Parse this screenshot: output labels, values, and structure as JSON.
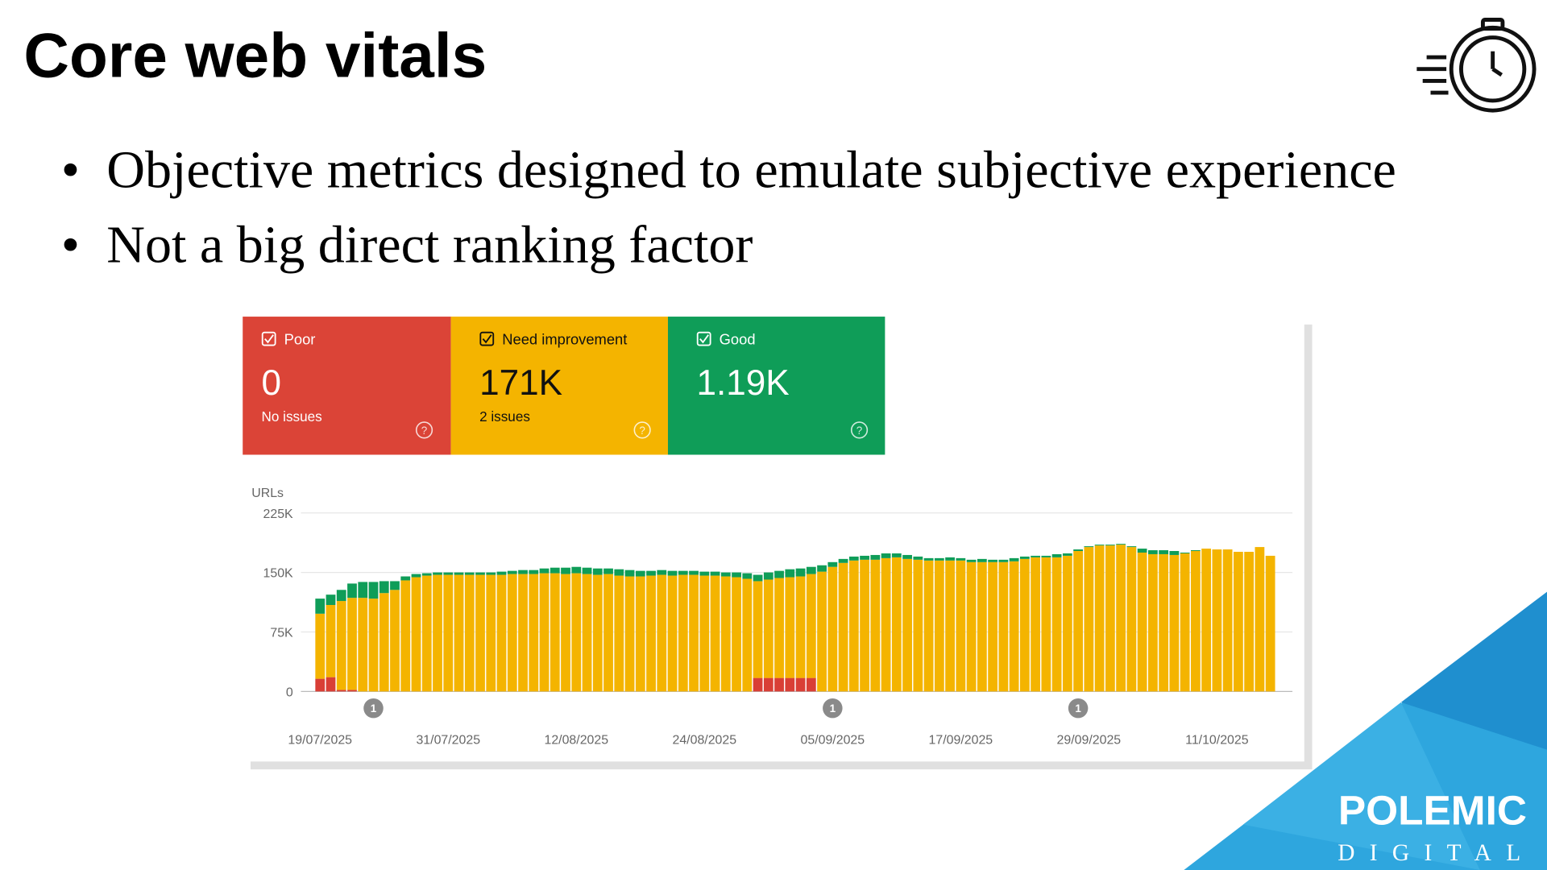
{
  "slide": {
    "title": "Core web vitals",
    "bullets": [
      "Objective metrics designed to emulate subjective experience",
      "Not a big direct ranking factor"
    ],
    "logo": {
      "line1": "POLEMIC",
      "line2": "DIGITAL"
    }
  },
  "cards": [
    {
      "value": 0,
      "note": "No issues"
    },
    {
      "value": 171000,
      "value_label": "171K",
      "note": "2 issues"
    },
    {
      "value": 1190,
      "value_label": "1.19K"
    }
  ],
  "event_markers": [
    "1",
    "1",
    "1"
  ],
  "chart_data": {
    "type": "bar",
    "stacked": true,
    "y_label": "URLs",
    "categories": [
      "19/07/2025",
      null,
      null,
      null,
      null,
      null,
      null,
      null,
      null,
      null,
      null,
      null,
      "31/07/2025",
      null,
      null,
      null,
      null,
      null,
      null,
      null,
      null,
      null,
      null,
      null,
      "12/08/2025",
      null,
      null,
      null,
      null,
      null,
      null,
      null,
      null,
      null,
      null,
      null,
      "24/08/2025",
      null,
      null,
      null,
      null,
      null,
      null,
      null,
      null,
      null,
      null,
      null,
      "05/09/2025",
      null,
      null,
      null,
      null,
      null,
      null,
      null,
      null,
      null,
      null,
      null,
      "17/09/2025",
      null,
      null,
      null,
      null,
      null,
      null,
      null,
      null,
      null,
      null,
      null,
      "29/09/2025",
      null,
      null,
      null,
      null,
      null,
      null,
      null,
      null,
      null,
      null,
      null,
      "11/10/2025",
      null,
      null,
      null,
      null,
      null
    ],
    "series": [
      {
        "name": "Poor",
        "color": "#d93f36",
        "values": [
          16000,
          18000,
          2000,
          2000,
          0,
          0,
          0,
          0,
          0,
          0,
          0,
          0,
          0,
          0,
          0,
          0,
          0,
          0,
          0,
          0,
          0,
          0,
          0,
          0,
          0,
          0,
          0,
          0,
          0,
          0,
          0,
          0,
          0,
          0,
          0,
          0,
          0,
          0,
          0,
          0,
          0,
          17000,
          17000,
          17000,
          17000,
          17000,
          17000,
          0,
          0,
          0,
          0,
          0,
          0,
          0,
          0,
          0,
          0,
          0,
          0,
          0,
          0,
          0,
          0,
          0,
          0,
          0,
          0,
          0,
          0,
          0,
          0,
          0,
          0,
          0,
          0,
          0,
          0,
          0,
          0,
          0,
          0,
          0,
          0,
          0,
          0,
          0,
          0,
          0,
          0,
          0
        ]
      },
      {
        "name": "Need improvement",
        "color": "#f4b400",
        "values": [
          82000,
          91000,
          112000,
          116000,
          118000,
          117000,
          124000,
          128000,
          140000,
          144000,
          146000,
          147000,
          147000,
          147000,
          147000,
          147000,
          147000,
          147000,
          148000,
          148000,
          148000,
          149000,
          149000,
          148000,
          149000,
          148000,
          147000,
          148000,
          146000,
          145000,
          145000,
          146000,
          147000,
          146000,
          147000,
          147000,
          146000,
          146000,
          145000,
          144000,
          142000,
          122000,
          124000,
          126000,
          127000,
          128000,
          131000,
          151000,
          157000,
          162000,
          165000,
          166000,
          166000,
          168000,
          169000,
          167000,
          166000,
          165000,
          165000,
          165000,
          165000,
          163000,
          163000,
          163000,
          163000,
          164000,
          167000,
          169000,
          169000,
          169000,
          171000,
          177000,
          182000,
          184000,
          184000,
          185000,
          182000,
          175000,
          173000,
          173000,
          172000,
          174000,
          177000,
          180000,
          179000,
          179000,
          176000,
          176000,
          182000,
          171000
        ]
      },
      {
        "name": "Good",
        "color": "#0f9d58",
        "values": [
          19000,
          13000,
          14000,
          18000,
          20000,
          21000,
          15000,
          11000,
          5000,
          4000,
          3000,
          3000,
          3000,
          3000,
          3000,
          3000,
          3000,
          4000,
          4000,
          5000,
          5000,
          6000,
          7000,
          8000,
          8000,
          8000,
          8000,
          7000,
          8000,
          8000,
          7000,
          6000,
          6000,
          6000,
          5000,
          5000,
          5000,
          5000,
          5000,
          6000,
          7000,
          8000,
          9000,
          9000,
          10000,
          10000,
          9000,
          8000,
          6000,
          5000,
          5000,
          5000,
          6000,
          6000,
          5000,
          5000,
          4000,
          3000,
          3000,
          4000,
          3000,
          3000,
          4000,
          3000,
          3000,
          4000,
          3000,
          2000,
          2000,
          4000,
          3000,
          2000,
          1000,
          1000,
          1000,
          1000,
          1000,
          5000,
          5000,
          5000,
          5000,
          1000,
          1000,
          0,
          0,
          0,
          0,
          0,
          0,
          0
        ]
      }
    ],
    "ylim": [
      0,
      225000
    ],
    "yticks": [
      0,
      {
        "value": 75000,
        "label": "75K"
      },
      {
        "value": 150000,
        "label": "150K"
      },
      {
        "value": 225000,
        "label": "225K"
      }
    ],
    "grid": true
  }
}
